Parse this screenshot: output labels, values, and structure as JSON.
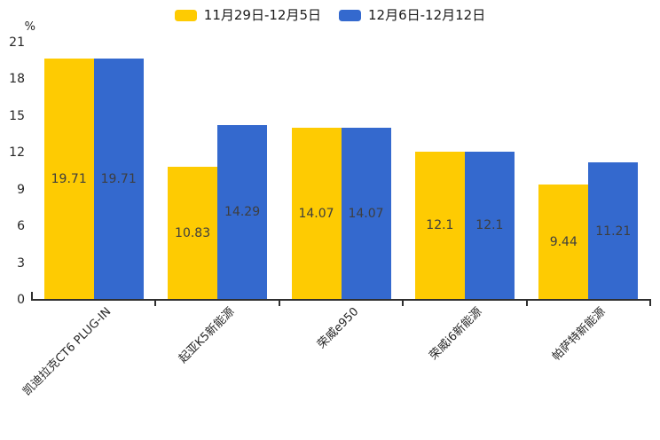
{
  "chart_data": {
    "type": "bar",
    "title": "",
    "ylabel": "%",
    "categories": [
      "凯迪拉克CT6 PLUG-IN",
      "起亚K5新能源",
      "荣威e950",
      "荣威i6新能源",
      "帕萨特新能源"
    ],
    "series": [
      {
        "name": "11月29日-12月5日",
        "color": "#FECB02",
        "values": [
          19.71,
          10.83,
          14.07,
          12.1,
          9.44
        ]
      },
      {
        "name": "12月6日-12月12日",
        "color": "#3469CE",
        "values": [
          19.71,
          14.29,
          14.07,
          12.1,
          11.21
        ]
      }
    ],
    "value_labels": [
      [
        "19.71",
        "10.83",
        "14.07",
        "12.1",
        "9.44"
      ],
      [
        "19.71",
        "14.29",
        "14.07",
        "12.1",
        "11.21"
      ]
    ],
    "yticks": [
      0,
      3,
      6,
      9,
      12,
      15,
      18,
      21
    ],
    "ylim": [
      0,
      21
    ],
    "legend_position": "top-center",
    "grid": false,
    "bar_value_labels_shown": true,
    "axis_color": "#2f2f2f"
  }
}
